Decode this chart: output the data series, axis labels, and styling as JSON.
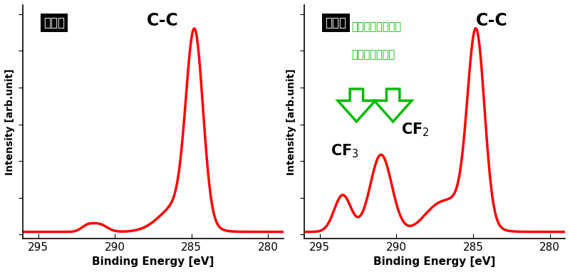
{
  "fig_width": 8.0,
  "fig_height": 3.82,
  "dpi": 100,
  "background_color": "#ffffff",
  "line_color": "#ff0000",
  "line_width": 2.5,
  "panel1_label": "修飾前",
  "panel2_label": "修飾後",
  "label_bg": "#000000",
  "label_fg": "#ffffff",
  "xlabel": "Binding Energy [eV]",
  "ylabel": "Intensity [arb.unit]",
  "xlim": [
    296,
    279
  ],
  "xticks": [
    295,
    290,
    285,
    280
  ],
  "annotation_cc": "C-C",
  "annotation_color_green": "#00bb00",
  "arrow_text_line1": "化学修飾によって",
  "arrow_text_line2": "出現したピーク"
}
